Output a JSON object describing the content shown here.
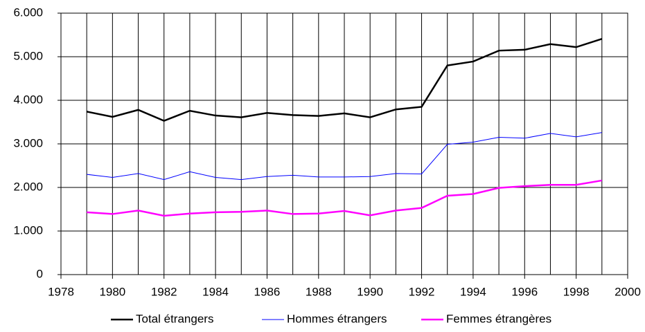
{
  "chart_data": {
    "type": "line",
    "x": [
      1979,
      1980,
      1981,
      1982,
      1983,
      1984,
      1985,
      1986,
      1987,
      1988,
      1989,
      1990,
      1991,
      1992,
      1993,
      1994,
      1995,
      1996,
      1997,
      1998,
      1999
    ],
    "series": [
      {
        "name": "Total étrangers",
        "color": "#000000",
        "width": 2.5,
        "values": [
          3740,
          3620,
          3780,
          3530,
          3760,
          3650,
          3610,
          3710,
          3660,
          3640,
          3700,
          3610,
          3790,
          3850,
          4800,
          4890,
          5140,
          5160,
          5290,
          5220,
          5410
        ]
      },
      {
        "name": "Hommes étrangers",
        "color": "#0000ff",
        "width": 1,
        "values": [
          2300,
          2230,
          2320,
          2180,
          2360,
          2230,
          2180,
          2250,
          2280,
          2240,
          2240,
          2250,
          2320,
          2310,
          2990,
          3040,
          3150,
          3130,
          3240,
          3160,
          3260
        ]
      },
      {
        "name": "Femmes étrangères",
        "color": "#ff00ff",
        "width": 2.5,
        "values": [
          1430,
          1390,
          1470,
          1350,
          1400,
          1430,
          1440,
          1470,
          1390,
          1400,
          1460,
          1360,
          1470,
          1530,
          1810,
          1850,
          1990,
          2030,
          2060,
          2060,
          2160
        ]
      }
    ],
    "xlim": [
      1978,
      2000
    ],
    "xticks": [
      1978,
      1980,
      1982,
      1984,
      1986,
      1988,
      1990,
      1992,
      1994,
      1996,
      1998,
      2000
    ],
    "ylim": [
      0,
      6000
    ],
    "yticks": [
      0,
      {
        "value": 1000,
        "label": "1.000"
      },
      {
        "value": 2000,
        "label": "2.000"
      },
      {
        "value": 3000,
        "label": "3.000"
      },
      {
        "value": 4000,
        "label": "4.000"
      },
      {
        "value": 5000,
        "label": "5.000"
      },
      {
        "value": 6000,
        "label": "6.000"
      }
    ],
    "grid": true,
    "legend": "bottom"
  }
}
